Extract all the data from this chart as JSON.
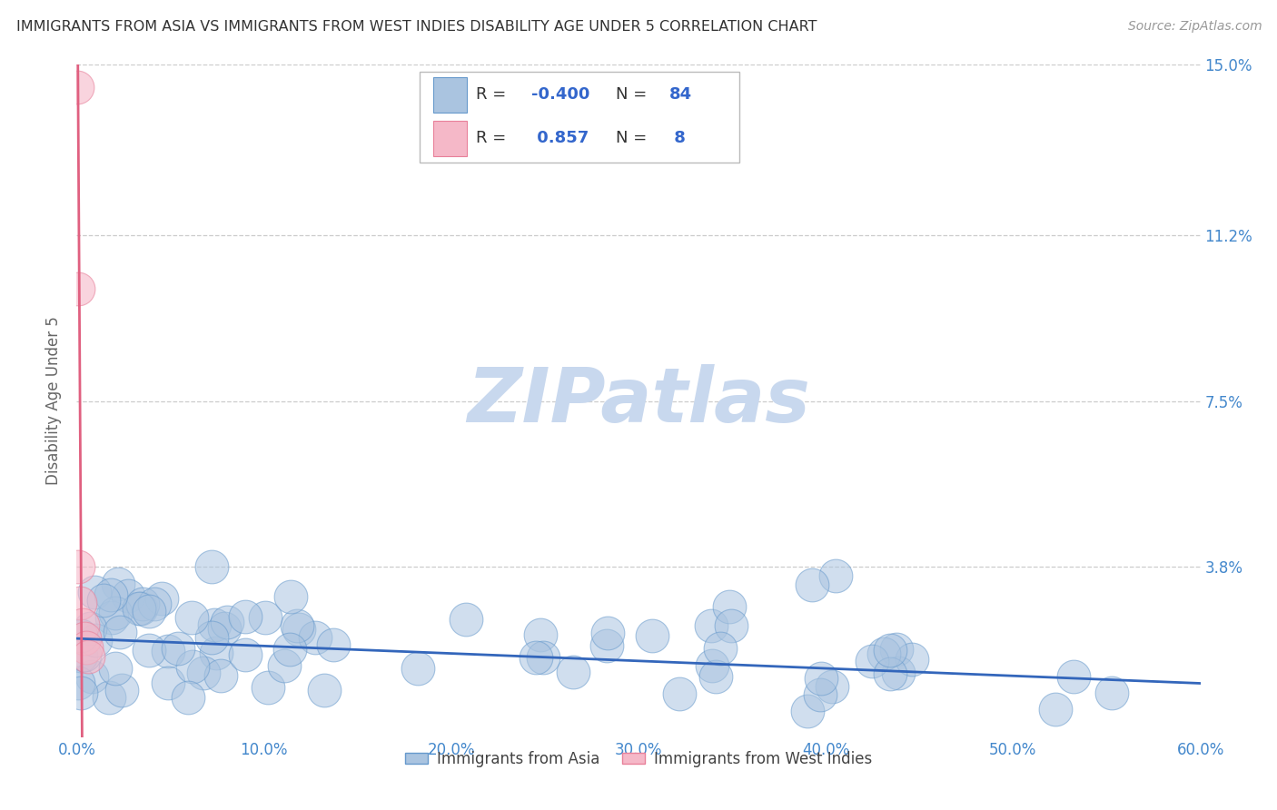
{
  "title": "IMMIGRANTS FROM ASIA VS IMMIGRANTS FROM WEST INDIES DISABILITY AGE UNDER 5 CORRELATION CHART",
  "source": "Source: ZipAtlas.com",
  "ylabel": "Disability Age Under 5",
  "xlim": [
    0.0,
    0.6
  ],
  "ylim": [
    0.0,
    0.15
  ],
  "xtick_labels": [
    "0.0%",
    "10.0%",
    "20.0%",
    "30.0%",
    "40.0%",
    "50.0%",
    "60.0%"
  ],
  "xtick_values": [
    0.0,
    0.1,
    0.2,
    0.3,
    0.4,
    0.5,
    0.6
  ],
  "ytick_labels": [
    "3.8%",
    "7.5%",
    "11.2%",
    "15.0%"
  ],
  "ytick_values": [
    0.038,
    0.075,
    0.112,
    0.15
  ],
  "asia_color": "#aac4e0",
  "asia_edge_color": "#6699cc",
  "wi_color": "#f5b8c8",
  "wi_edge_color": "#e8809a",
  "trend_asia_color": "#3366bb",
  "trend_wi_color": "#e06080",
  "legend_asia_R": "-0.400",
  "legend_asia_N": "84",
  "legend_wi_R": "0.857",
  "legend_wi_N": "8",
  "watermark": "ZIPatlas",
  "watermark_color": "#c8d8ee",
  "background_color": "#ffffff",
  "grid_color": "#cccccc",
  "title_color": "#333333",
  "axis_label_color": "#666666",
  "tick_color": "#4488cc",
  "source_color": "#999999"
}
